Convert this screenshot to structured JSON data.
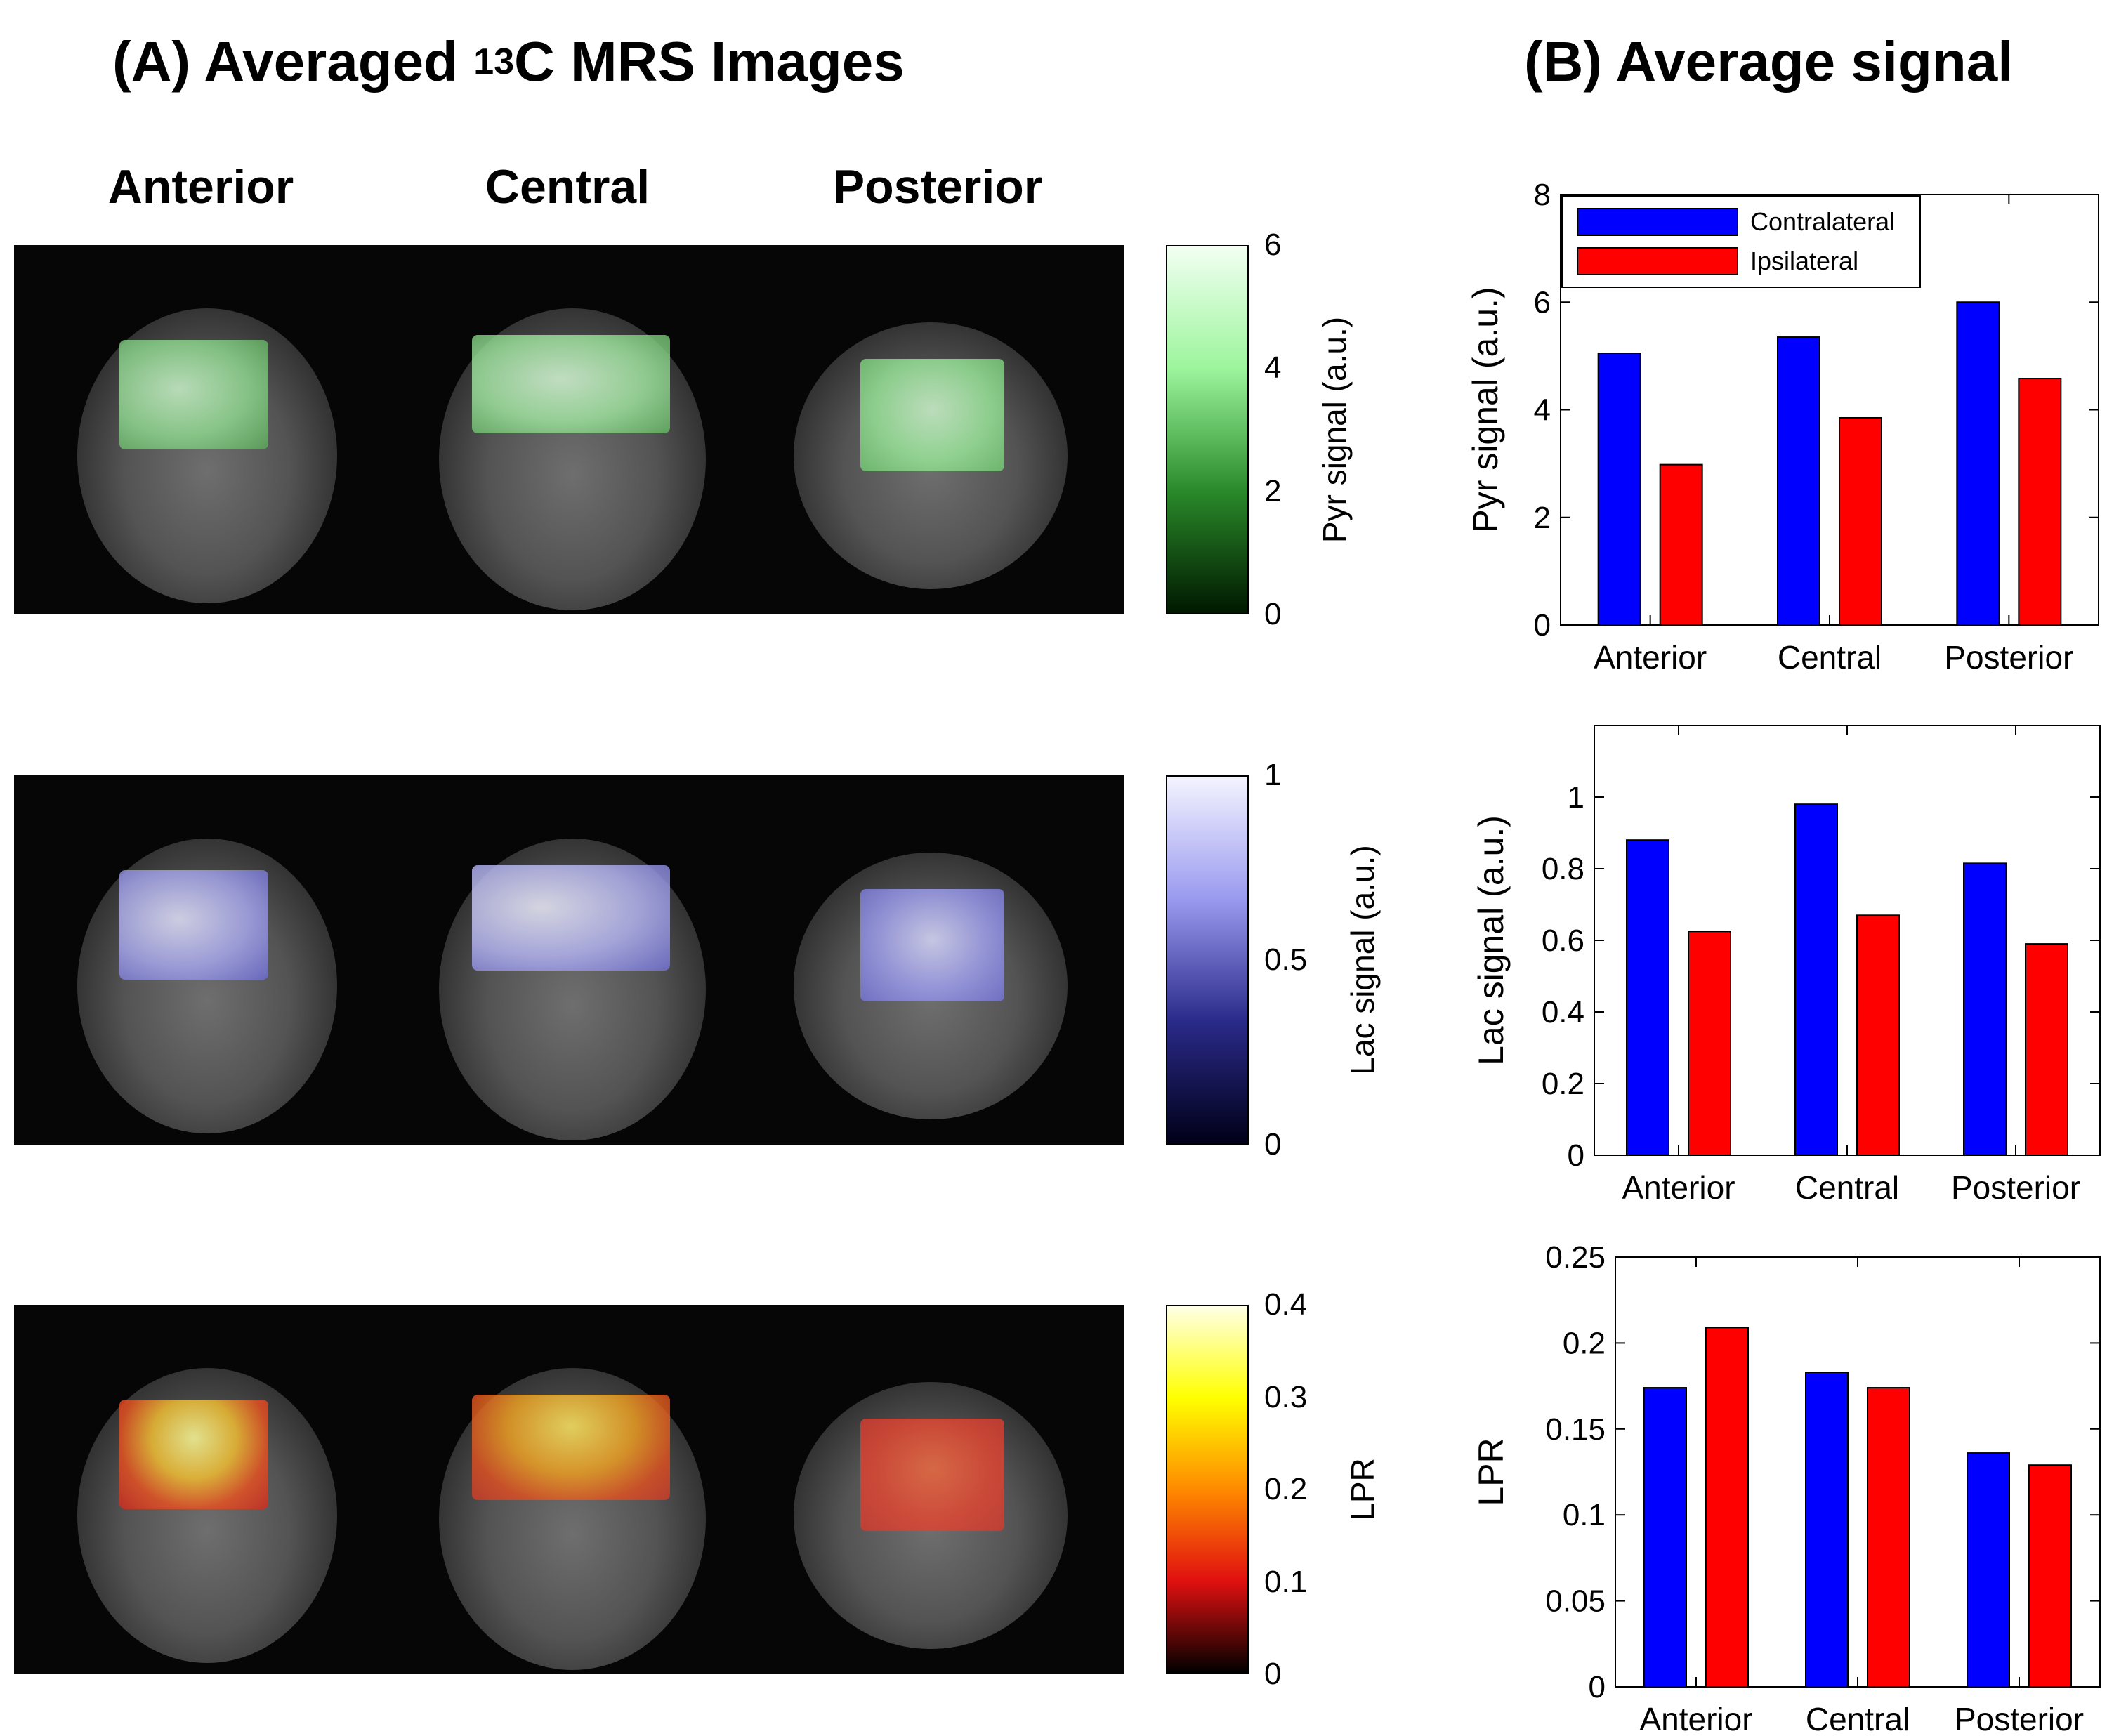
{
  "panel_a": {
    "title_prefix": "(A) Averaged ",
    "title_superscript": "13",
    "title_suffix": "C MRS Images",
    "columns": [
      "Anterior",
      "Central",
      "Posterior"
    ],
    "colorbars": [
      {
        "label": "Pyr signal (a.u.)",
        "ticks": [
          "6",
          "4",
          "2",
          "0"
        ],
        "colors": [
          "#f2fff2",
          "#9cf59c",
          "#2a8a2a",
          "#001800"
        ]
      },
      {
        "label": "Lac signal (a.u.)",
        "ticks": [
          "1",
          "0.5",
          "0"
        ],
        "colors": [
          "#f4f4ff",
          "#9a9af0",
          "#2a2a8a",
          "#000018"
        ]
      },
      {
        "label": "LPR",
        "ticks": [
          "0.4",
          "0.3",
          "0.2",
          "0.1",
          "0"
        ],
        "colors": [
          "#ffffe6",
          "#ffff00",
          "#ff8a00",
          "#e01010",
          "#000000"
        ]
      }
    ]
  },
  "panel_b": {
    "title": "(B) Average signal"
  },
  "colors": {
    "contralateral": "#0000ff",
    "ipsilateral": "#ff0000"
  },
  "chart_data": [
    {
      "type": "bar",
      "categories": [
        "Anterior",
        "Central",
        "Posterior"
      ],
      "series": [
        {
          "name": "Contralateral",
          "values": [
            5.05,
            5.35,
            6.0
          ]
        },
        {
          "name": "Ipsilateral",
          "values": [
            2.98,
            3.85,
            4.58
          ]
        }
      ],
      "ylabel": "Pyr signal (a.u.)",
      "ylim": [
        0,
        8
      ],
      "yticks": [
        "0",
        "2",
        "4",
        "6",
        "8"
      ],
      "legend": "top-left"
    },
    {
      "type": "bar",
      "categories": [
        "Anterior",
        "Central",
        "Posterior"
      ],
      "series": [
        {
          "name": "Contralateral",
          "values": [
            0.88,
            0.98,
            0.815
          ]
        },
        {
          "name": "Ipsilateral",
          "values": [
            0.625,
            0.67,
            0.59
          ]
        }
      ],
      "ylabel": "Lac signal (a.u.)",
      "ylim": [
        0,
        1.2
      ],
      "yticks": [
        "0",
        "0.2",
        "0.4",
        "0.6",
        "0.8",
        "1"
      ]
    },
    {
      "type": "bar",
      "categories": [
        "Anterior",
        "Central",
        "Posterior"
      ],
      "series": [
        {
          "name": "Contralateral",
          "values": [
            0.174,
            0.183,
            0.136
          ]
        },
        {
          "name": "Ipsilateral",
          "values": [
            0.209,
            0.174,
            0.129
          ]
        }
      ],
      "ylabel": "LPR",
      "ylim": [
        0,
        0.25
      ],
      "yticks": [
        "0",
        "0.05",
        "0.1",
        "0.15",
        "0.2",
        "0.25"
      ]
    }
  ]
}
